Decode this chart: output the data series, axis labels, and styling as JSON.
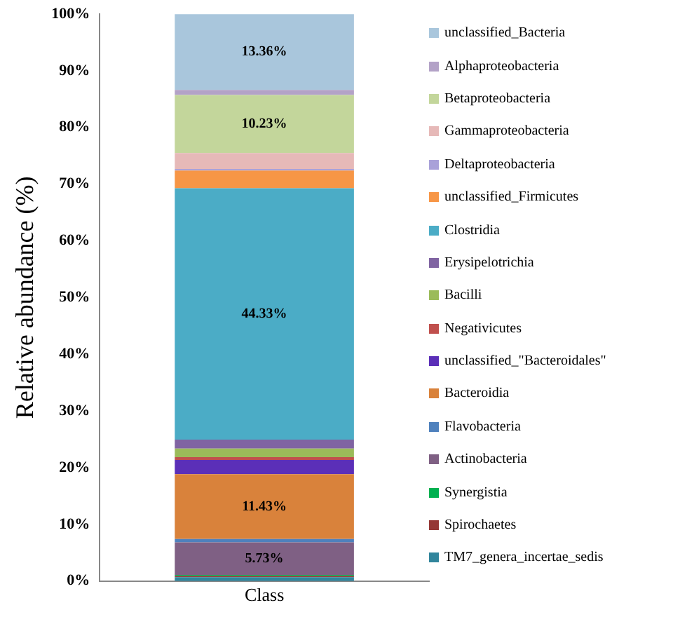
{
  "chart_data": {
    "type": "bar",
    "stacked": true,
    "ylabel": "Relative abundance (%)",
    "categories": [
      "Class"
    ],
    "ylim": [
      0,
      100
    ],
    "yticks": [
      {
        "value": 0,
        "label": "0%"
      },
      {
        "value": 10,
        "label": "10%"
      },
      {
        "value": 20,
        "label": "20%"
      },
      {
        "value": 30,
        "label": "30%"
      },
      {
        "value": 40,
        "label": "40%"
      },
      {
        "value": 50,
        "label": "50%"
      },
      {
        "value": 60,
        "label": "60%"
      },
      {
        "value": 70,
        "label": "70%"
      },
      {
        "value": 80,
        "label": "80%"
      },
      {
        "value": 90,
        "label": "90%"
      },
      {
        "value": 100,
        "label": "100%"
      }
    ],
    "grid": false,
    "legend": "right",
    "series": [
      {
        "name": "TM7_genera_incertae_sedis",
        "color": "#31859c",
        "values": [
          0.7
        ]
      },
      {
        "name": "Spirochaetes",
        "color": "#953735",
        "values": [
          0.2
        ]
      },
      {
        "name": "Synergistia",
        "color": "#00b050",
        "values": [
          0.2
        ]
      },
      {
        "name": "Actinobacteria",
        "color": "#7f6084",
        "values": [
          5.73
        ],
        "value_labels": [
          "5.73%"
        ]
      },
      {
        "name": "Flavobacteria",
        "color": "#4f81bd",
        "values": [
          0.6
        ]
      },
      {
        "name": "Bacteroidia",
        "color": "#d9823b",
        "values": [
          11.43
        ],
        "value_labels": [
          "11.43%"
        ]
      },
      {
        "name": "unclassified_\"Bacteroidales\"",
        "color": "#5b2fb8",
        "values": [
          2.5
        ]
      },
      {
        "name": "Negativicutes",
        "color": "#c0504d",
        "values": [
          0.5
        ]
      },
      {
        "name": "Bacilli",
        "color": "#9bbb59",
        "values": [
          1.5
        ]
      },
      {
        "name": "Erysipelotrichia",
        "color": "#8064a2",
        "values": [
          1.6
        ]
      },
      {
        "name": "Clostridia",
        "color": "#4bacc6",
        "values": [
          44.33
        ],
        "value_labels": [
          "44.33%"
        ]
      },
      {
        "name": "unclassified_Firmicutes",
        "color": "#f79646",
        "values": [
          3.1
        ]
      },
      {
        "name": "Deltaproteobacteria",
        "color": "#a9a1d9",
        "values": [
          0.3
        ]
      },
      {
        "name": "Gammaproteobacteria",
        "color": "#e6b9b8",
        "values": [
          2.8
        ]
      },
      {
        "name": "Betaproteobacteria",
        "color": "#c3d69b",
        "values": [
          10.23
        ],
        "value_labels": [
          "10.23%"
        ]
      },
      {
        "name": "Alphaproteobacteria",
        "color": "#b3a2c7",
        "values": [
          0.9
        ]
      },
      {
        "name": "unclassified_Bacteria",
        "color": "#a9c6dc",
        "values": [
          13.36
        ],
        "value_labels": [
          "13.36%"
        ]
      }
    ]
  }
}
